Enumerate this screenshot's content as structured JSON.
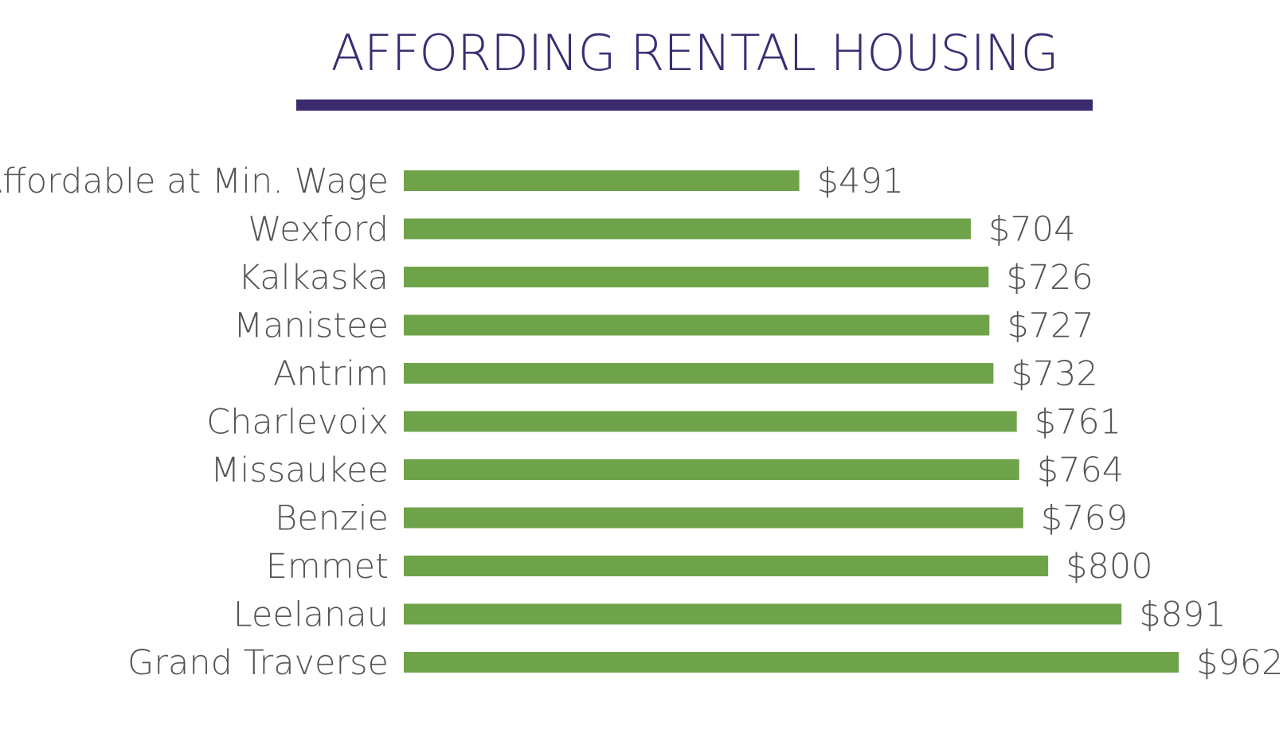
{
  "chart_data": {
    "type": "bar",
    "orientation": "horizontal",
    "title": "AFFORDING RENTAL HOUSING",
    "xlabel": "",
    "ylabel": "",
    "grid": false,
    "legend": "none",
    "categories": [
      "Affordable at Min. Wage",
      "Wexford",
      "Kalkaska",
      "Manistee",
      "Antrim",
      "Charlevoix",
      "Missaukee",
      "Benzie",
      "Emmet",
      "Leelanau",
      "Grand Traverse"
    ],
    "values": [
      491,
      704,
      726,
      727,
      732,
      761,
      764,
      769,
      800,
      891,
      962
    ],
    "value_labels": [
      "$491",
      "$704",
      "$726",
      "$727",
      "$732",
      "$761",
      "$764",
      "$769",
      "$800",
      "$891",
      "$962"
    ],
    "xlim": [
      0,
      962
    ],
    "bar_color": "#6fa34a",
    "title_color": "#3b2d73",
    "rule_color": "#3b2a6e"
  }
}
